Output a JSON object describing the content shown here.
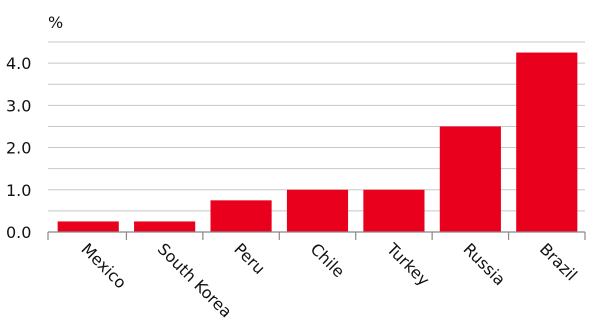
{
  "chart_data": {
    "type": "bar",
    "title": "",
    "xlabel": "",
    "ylabel": "%",
    "ylim": [
      0,
      4.5
    ],
    "yticks": [
      "0.0",
      "1.0",
      "2.0",
      "3.0",
      "4.0"
    ],
    "grid": true,
    "color": "#e8001c",
    "categories": [
      "Mexico",
      "South Korea",
      "Peru",
      "Chile",
      "Turkey",
      "Russia",
      "Brazil"
    ],
    "values": [
      0.25,
      0.25,
      0.75,
      1.0,
      1.0,
      2.5,
      4.25
    ]
  }
}
